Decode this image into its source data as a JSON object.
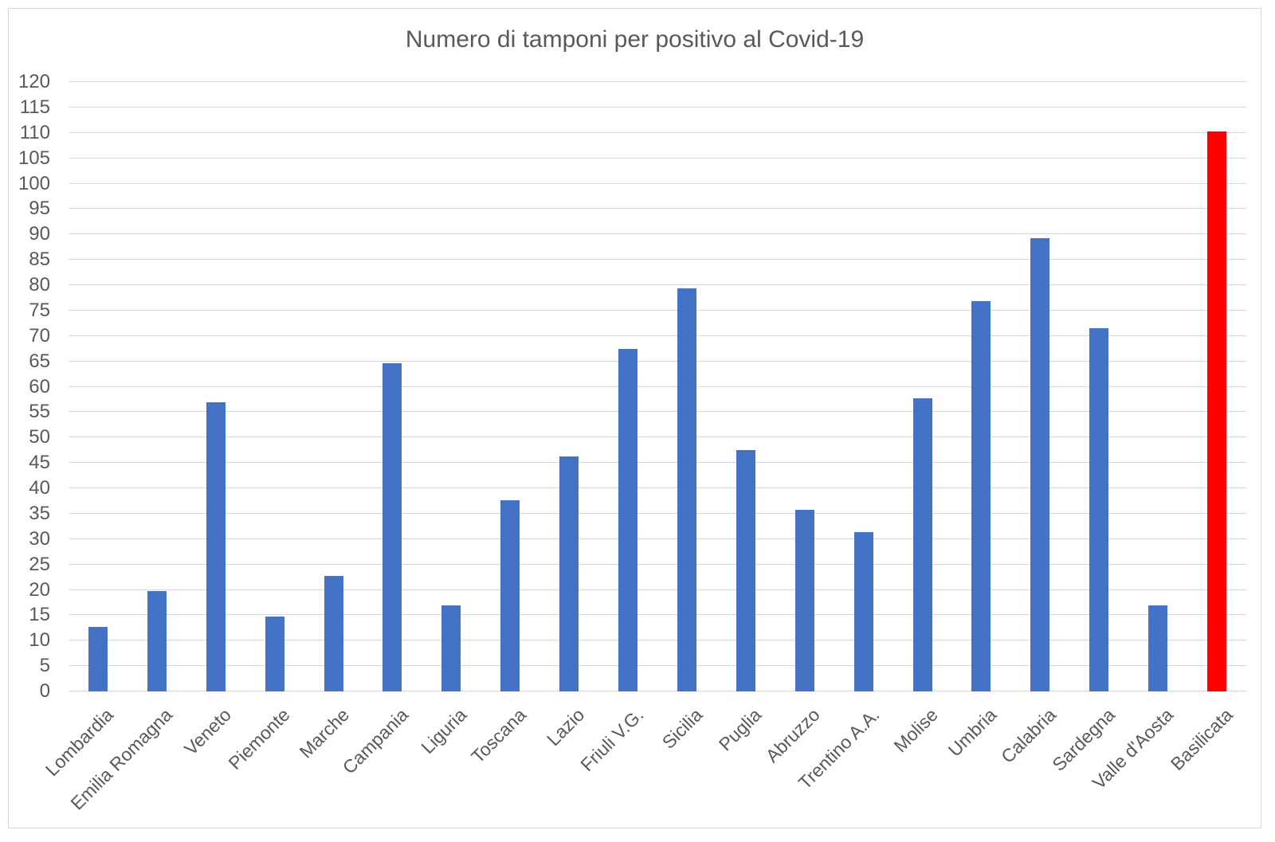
{
  "chart_data": {
    "type": "bar",
    "title": "Numero di tamponi per positivo al Covid-19",
    "categories": [
      "Lombardia",
      "Emilia Romagna",
      "Veneto",
      "Piemonte",
      "Marche",
      "Campania",
      "Liguria",
      "Toscana",
      "Lazio",
      "Friuli V.G.",
      "Sicilia",
      "Puglia",
      "Abruzzo",
      "Trentino A.A.",
      "Molise",
      "Umbria",
      "Calabria",
      "Sardegna",
      "Valle d'Aosta",
      "Basilicata"
    ],
    "values": [
      12.7,
      19.8,
      57.0,
      14.8,
      22.7,
      64.6,
      17.0,
      37.7,
      46.3,
      67.5,
      79.3,
      47.5,
      35.8,
      31.4,
      57.8,
      76.9,
      89.2,
      71.5,
      17.0,
      110.2
    ],
    "highlight_category": "Basilicata",
    "colors": {
      "bar_default": "#4472C4",
      "bar_highlight": "#FF0000",
      "gridline": "#D9D9D9",
      "text": "#595959",
      "frame_border": "#D9D9D9",
      "background": "#FFFFFF"
    },
    "xlabel": "",
    "ylabel": "",
    "ylim": [
      0,
      120
    ],
    "y_tick_step": 5,
    "y_ticks": [
      0,
      5,
      10,
      15,
      20,
      25,
      30,
      35,
      40,
      45,
      50,
      55,
      60,
      65,
      70,
      75,
      80,
      85,
      90,
      95,
      100,
      105,
      110,
      115,
      120
    ],
    "grid": true,
    "legend": "none",
    "x_label_rotation_deg": 45
  }
}
